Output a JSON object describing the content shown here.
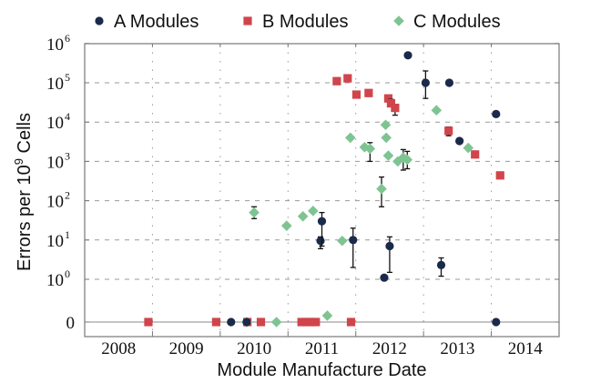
{
  "chart_data": {
    "type": "scatter",
    "title": "",
    "xlabel": "Module Manufacture Date",
    "ylabel": "Errors per 10^9 Cells",
    "ylabel_parts": {
      "base": "Errors per 10",
      "exp": "9",
      "rest": " Cells"
    },
    "x_range": [
      2008,
      2015
    ],
    "x_tick_labels": [
      "2008",
      "2009",
      "2010",
      "2011",
      "2012",
      "2013",
      "2014"
    ],
    "y_scale": "log with zero baseline",
    "y_tick_labels": [
      {
        "label": "0",
        "value": 0
      },
      {
        "label": "10",
        "exp": "0",
        "value": 1
      },
      {
        "label": "10",
        "exp": "1",
        "value": 10
      },
      {
        "label": "10",
        "exp": "2",
        "value": 100
      },
      {
        "label": "10",
        "exp": "3",
        "value": 1000
      },
      {
        "label": "10",
        "exp": "4",
        "value": 10000
      },
      {
        "label": "10",
        "exp": "5",
        "value": 100000
      },
      {
        "label": "10",
        "exp": "6",
        "value": 1000000
      }
    ],
    "grid": true,
    "legend_position": "top",
    "series": [
      {
        "name": "A Modules",
        "marker": "circle",
        "color": "#1b2a4a",
        "points": [
          {
            "x": 2010.16,
            "y": 0
          },
          {
            "x": 2010.39,
            "y": 0
          },
          {
            "x": 2011.48,
            "y": 9.5,
            "err": [
              6,
              12
            ]
          },
          {
            "x": 2011.5,
            "y": 30,
            "err": [
              7,
              50
            ]
          },
          {
            "x": 2011.96,
            "y": 10,
            "err": [
              2,
              20
            ]
          },
          {
            "x": 2012.42,
            "y": 1.1
          },
          {
            "x": 2012.5,
            "y": 7,
            "err": [
              1.5,
              12
            ]
          },
          {
            "x": 2012.77,
            "y": 500000
          },
          {
            "x": 2013.03,
            "y": 100000,
            "err": [
              40000,
              200000
            ]
          },
          {
            "x": 2013.26,
            "y": 2.3,
            "err": [
              1.2,
              3.5
            ]
          },
          {
            "x": 2013.38,
            "y": 100000
          },
          {
            "x": 2013.53,
            "y": 3300
          },
          {
            "x": 2014.07,
            "y": 16000
          },
          {
            "x": 2014.07,
            "y": 0
          }
        ]
      },
      {
        "name": "B Modules",
        "marker": "square",
        "color": "#d0454c",
        "points": [
          {
            "x": 2008.94,
            "y": 0
          },
          {
            "x": 2009.94,
            "y": 0
          },
          {
            "x": 2010.4,
            "y": 0
          },
          {
            "x": 2010.6,
            "y": 0
          },
          {
            "x": 2011.2,
            "y": 0
          },
          {
            "x": 2011.27,
            "y": 0
          },
          {
            "x": 2011.34,
            "y": 0
          },
          {
            "x": 2011.41,
            "y": 0
          },
          {
            "x": 2011.93,
            "y": 0
          },
          {
            "x": 2011.72,
            "y": 110000
          },
          {
            "x": 2011.88,
            "y": 130000,
            "err": [
              110000,
              150000
            ]
          },
          {
            "x": 2012.01,
            "y": 50000
          },
          {
            "x": 2012.19,
            "y": 55000,
            "err": [
              45000,
              65000
            ]
          },
          {
            "x": 2012.48,
            "y": 40000
          },
          {
            "x": 2012.52,
            "y": 30000,
            "err": [
              25000,
              38000
            ]
          },
          {
            "x": 2012.58,
            "y": 23000,
            "err": [
              15000,
              28000
            ]
          },
          {
            "x": 2013.37,
            "y": 6000,
            "err": [
              4500,
              7500
            ]
          },
          {
            "x": 2013.76,
            "y": 1500
          },
          {
            "x": 2014.13,
            "y": 440
          }
        ]
      },
      {
        "name": "C Modules",
        "marker": "diamond",
        "color": "#7ec492",
        "points": [
          {
            "x": 2010.39,
            "y": 0
          },
          {
            "x": 2010.83,
            "y": 0
          },
          {
            "x": 2010.5,
            "y": 50,
            "err": [
              35,
              70
            ]
          },
          {
            "x": 2010.98,
            "y": 23
          },
          {
            "x": 2011.22,
            "y": 40
          },
          {
            "x": 2011.37,
            "y": 55
          },
          {
            "x": 2011.58,
            "y": 0.15
          },
          {
            "x": 2011.8,
            "y": 9.5
          },
          {
            "x": 2011.92,
            "y": 4000
          },
          {
            "x": 2012.13,
            "y": 2300
          },
          {
            "x": 2012.21,
            "y": 2100,
            "err": [
              1000,
              3000
            ]
          },
          {
            "x": 2012.38,
            "y": 200,
            "err": [
              70,
              400
            ]
          },
          {
            "x": 2012.44,
            "y": 8500
          },
          {
            "x": 2012.45,
            "y": 4000
          },
          {
            "x": 2012.48,
            "y": 1400
          },
          {
            "x": 2012.62,
            "y": 1000
          },
          {
            "x": 2012.7,
            "y": 1250,
            "err": [
              600,
              2000
            ]
          },
          {
            "x": 2012.76,
            "y": 1100,
            "err": [
              650,
              1800
            ]
          },
          {
            "x": 2013.19,
            "y": 20000
          },
          {
            "x": 2013.66,
            "y": 2200
          }
        ]
      }
    ]
  }
}
